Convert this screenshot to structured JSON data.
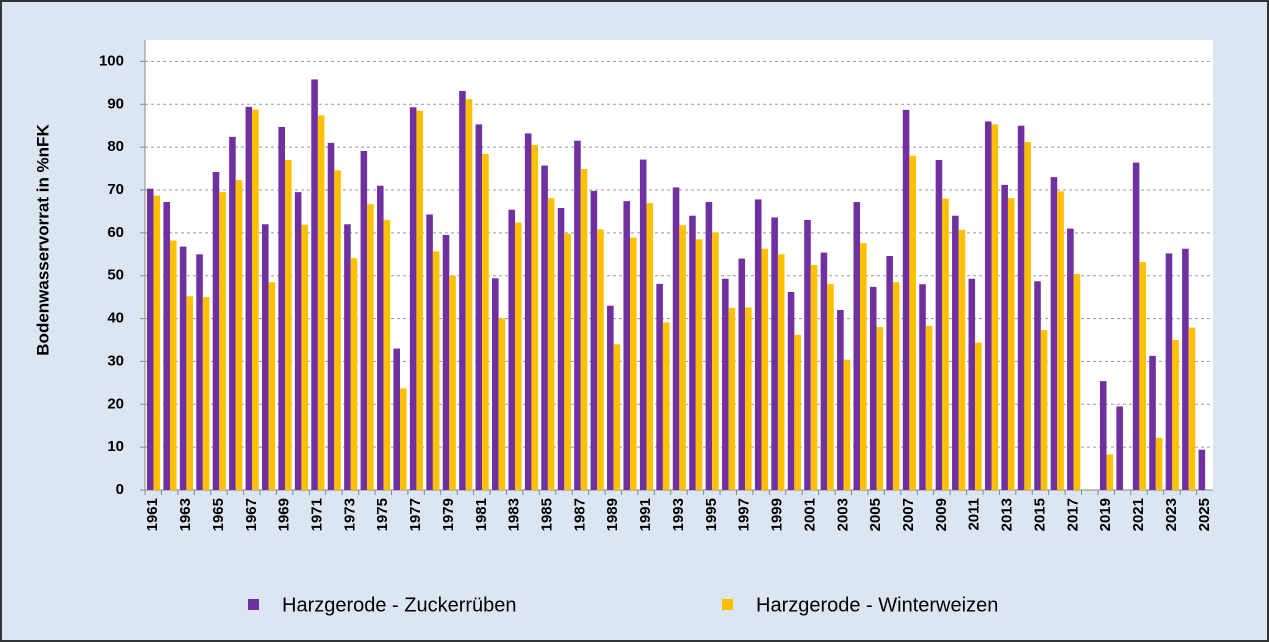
{
  "chart_data": {
    "type": "bar",
    "y_label": "Bodenwasservorrat in %nFK",
    "categories": [
      "1961",
      null,
      "1963",
      null,
      "1965",
      null,
      "1967",
      null,
      "1969",
      null,
      "1971",
      null,
      "1973",
      null,
      "1975",
      null,
      "1977",
      null,
      "1979",
      null,
      "1981",
      null,
      "1983",
      null,
      "1985",
      null,
      "1987",
      null,
      "1989",
      null,
      "1991",
      null,
      "1993",
      null,
      "1995",
      null,
      "1997",
      null,
      "1999",
      null,
      "2001",
      null,
      "2003",
      null,
      "2005",
      null,
      "2007",
      null,
      "2009",
      null,
      "2011",
      null,
      "2013",
      null,
      "2015",
      null,
      "2017",
      null,
      "2019",
      null,
      "2021",
      null,
      "2023",
      null,
      "2025"
    ],
    "series": [
      {
        "name": "Harzgerode - Zuckerrüben",
        "color": "#7030a0",
        "values": [
          70.3,
          67.2,
          56.8,
          55.0,
          74.2,
          82.4,
          89.4,
          62.0,
          84.7,
          69.5,
          95.8,
          81.0,
          62.0,
          79.1,
          71.0,
          33.0,
          89.3,
          64.3,
          59.5,
          93.1,
          85.3,
          49.4,
          65.4,
          83.2,
          75.7,
          65.8,
          81.5,
          69.8,
          43.0,
          67.4,
          77.1,
          48.1,
          70.6,
          64.0,
          67.2,
          49.3,
          54.0,
          67.8,
          63.6,
          46.2,
          63.0,
          55.4,
          42.0,
          67.2,
          47.4,
          54.6,
          88.7,
          48.0,
          77.0,
          64.0,
          49.3,
          86.0,
          71.2,
          85.0,
          48.7,
          73.0,
          61.0,
          null,
          25.4,
          19.5,
          76.4,
          31.3,
          55.2,
          56.3,
          9.4
        ]
      },
      {
        "name": "Harzgerode - Winterweizen",
        "color": "#ffc000",
        "values": [
          68.7,
          58.2,
          45.2,
          45.0,
          69.5,
          72.3,
          88.8,
          48.5,
          77.0,
          61.9,
          87.4,
          74.6,
          54.1,
          66.7,
          63.0,
          23.7,
          88.5,
          55.7,
          50.0,
          91.2,
          78.4,
          40.0,
          62.4,
          80.5,
          68.1,
          59.8,
          74.9,
          60.8,
          34.0,
          58.9,
          66.9,
          39.1,
          61.8,
          58.5,
          60.1,
          42.5,
          42.6,
          56.3,
          55.0,
          36.2,
          52.5,
          48.1,
          30.4,
          57.6,
          38.0,
          48.5,
          78.0,
          38.3,
          68.0,
          60.7,
          34.4,
          85.3,
          68.1,
          81.2,
          37.3,
          69.7,
          50.4,
          null,
          8.3,
          null,
          53.2,
          12.2,
          35.0,
          37.9,
          null
        ]
      }
    ],
    "ylim": [
      0,
      105
    ],
    "yticks": [
      0,
      10,
      20,
      30,
      40,
      50,
      60,
      70,
      80,
      90,
      100
    ],
    "grid": true
  }
}
